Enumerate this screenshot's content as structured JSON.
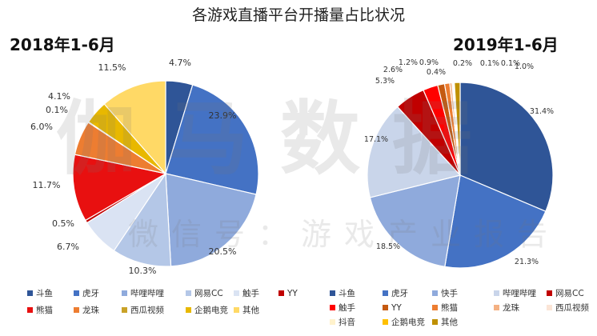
{
  "main_title": "各游戏直播平台开播量占比状况",
  "watermark": {
    "line1": "伽马数据",
    "line2": "微信号：游戏产业报告"
  },
  "chart_data": [
    {
      "type": "pie",
      "title": "2018年1-6月",
      "start_angle_deg": 0,
      "direction": "clockwise",
      "slices": [
        {
          "name": "斗鱼",
          "value": 4.7,
          "label": "4.7%",
          "color": "#2f5597"
        },
        {
          "name": "虎牙",
          "value": 23.9,
          "label": "23.9%",
          "color": "#4472c4"
        },
        {
          "name": "哔哩哔哩",
          "value": 20.5,
          "label": "20.5%",
          "color": "#8faadc"
        },
        {
          "name": "网易CC",
          "value": 10.3,
          "label": "10.3%",
          "color": "#b4c7e7"
        },
        {
          "name": "触手",
          "value": 6.7,
          "label": "6.7%",
          "color": "#dae3f3"
        },
        {
          "name": "YY",
          "value": 0.5,
          "label": "0.5%",
          "color": "#c00000"
        },
        {
          "name": "熊猫",
          "value": 11.7,
          "label": "11.7%",
          "color": "#e81010"
        },
        {
          "name": "龙珠",
          "value": 6.0,
          "label": "6.0%",
          "color": "#ed7d31"
        },
        {
          "name": "西瓜视频",
          "value": 0.1,
          "label": "0.1%",
          "color": "#c9a227"
        },
        {
          "name": "企鹅电竞",
          "value": 4.1,
          "label": "4.1%",
          "color": "#e8b800"
        },
        {
          "name": "其他",
          "value": 11.5,
          "label": "11.5%",
          "color": "#ffd966"
        }
      ],
      "legend": [
        {
          "name": "斗鱼",
          "color": "#2f5597"
        },
        {
          "name": "虎牙",
          "color": "#4472c4"
        },
        {
          "name": "哔哩哔哩",
          "color": "#8faadc"
        },
        {
          "name": "网易CC",
          "color": "#b4c7e7"
        },
        {
          "name": "触手",
          "color": "#dae3f3"
        },
        {
          "name": "YY",
          "color": "#c00000"
        },
        {
          "name": "熊猫",
          "color": "#e81010"
        },
        {
          "name": "龙珠",
          "color": "#ed7d31"
        },
        {
          "name": "西瓜视频",
          "color": "#c9a227"
        },
        {
          "name": "企鹅电竞",
          "color": "#e8b800"
        },
        {
          "name": "其他",
          "color": "#ffd966"
        }
      ]
    },
    {
      "type": "pie",
      "title": "2019年1-6月",
      "start_angle_deg": 0,
      "direction": "clockwise",
      "slices": [
        {
          "name": "斗鱼",
          "value": 31.4,
          "label": "31.4%",
          "color": "#2f5597"
        },
        {
          "name": "虎牙",
          "value": 21.3,
          "label": "21.3%",
          "color": "#4472c4"
        },
        {
          "name": "快手",
          "value": 18.5,
          "label": "18.5%",
          "color": "#8faadc"
        },
        {
          "name": "哔哩哔哩",
          "value": 17.1,
          "label": "17.1%",
          "color": "#c9d5ea"
        },
        {
          "name": "网易CC",
          "value": 5.3,
          "label": "5.3%",
          "color": "#c00000"
        },
        {
          "name": "触手",
          "value": 2.6,
          "label": "2.6%",
          "color": "#ff0000"
        },
        {
          "name": "YY",
          "value": 1.2,
          "label": "1.2%",
          "color": "#c55a11"
        },
        {
          "name": "熊猫",
          "value": 0.9,
          "label": "0.9%",
          "color": "#ed7d31"
        },
        {
          "name": "龙珠",
          "value": 0.4,
          "label": "0.4%",
          "color": "#f4b183"
        },
        {
          "name": "西瓜视频",
          "value": 0.2,
          "label": "0.2%",
          "color": "#fbe5d6"
        },
        {
          "name": "抖音",
          "value": 0.1,
          "label": "0.1%",
          "color": "#fff2cc"
        },
        {
          "name": "企鹅电竞",
          "value": 0.1,
          "label": "0.1%",
          "color": "#ffc000"
        },
        {
          "name": "其他",
          "value": 1.0,
          "label": "1.0%",
          "color": "#bf9000"
        }
      ],
      "legend": [
        {
          "name": "斗鱼",
          "color": "#2f5597"
        },
        {
          "name": "虎牙",
          "color": "#4472c4"
        },
        {
          "name": "快手",
          "color": "#8faadc"
        },
        {
          "name": "哔哩哔哩",
          "color": "#c9d5ea"
        },
        {
          "name": "网易CC",
          "color": "#c00000"
        },
        {
          "name": "触手",
          "color": "#ff0000"
        },
        {
          "name": "YY",
          "color": "#c55a11"
        },
        {
          "name": "熊猫",
          "color": "#ed7d31"
        },
        {
          "name": "龙珠",
          "color": "#f4b183"
        },
        {
          "name": "西瓜视频",
          "color": "#fbe5d6"
        },
        {
          "name": "抖音",
          "color": "#fff2cc"
        },
        {
          "name": "企鹅电竞",
          "color": "#ffc000"
        },
        {
          "name": "其他",
          "color": "#bf9000"
        }
      ]
    }
  ]
}
